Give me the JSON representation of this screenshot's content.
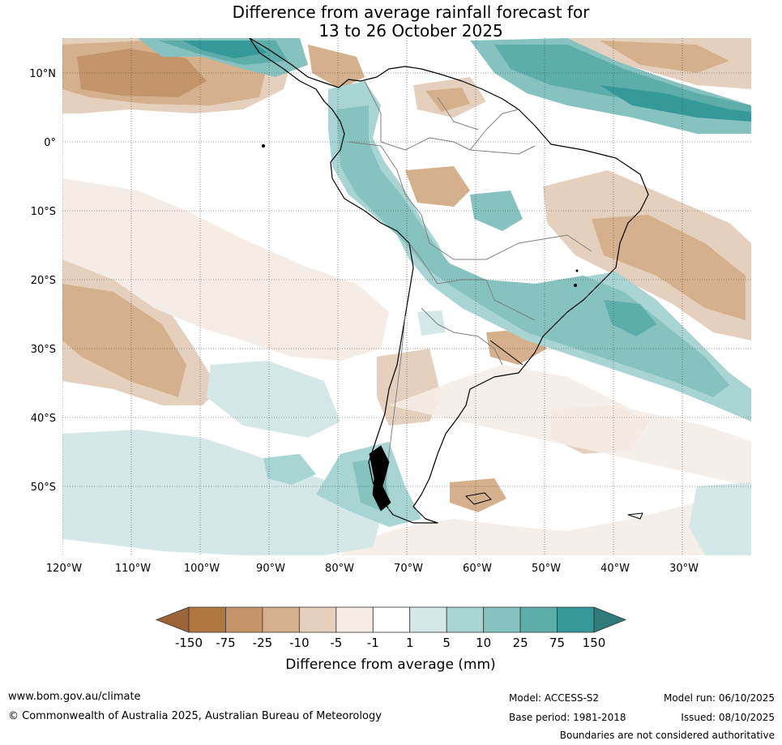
{
  "title": {
    "line1": "Difference from average rainfall forecast for",
    "line2": "13 to 26 October 2025"
  },
  "lat_labels": [
    "10°N",
    "0°",
    "10°S",
    "20°S",
    "30°S",
    "40°S",
    "50°S"
  ],
  "lon_labels": [
    "120°W",
    "110°W",
    "100°W",
    "90°W",
    "80°W",
    "70°W",
    "60°W",
    "50°W",
    "40°W",
    "30°W"
  ],
  "colorbar": {
    "title": "Difference from average (mm)",
    "tick_labels": [
      "-150",
      "-75",
      "-25",
      "-10",
      "-5",
      "-1",
      "1",
      "5",
      "10",
      "25",
      "75",
      "150"
    ],
    "colors": [
      "#b07840",
      "#c4956a",
      "#d4b08c",
      "#e5d0bd",
      "#f5ece6",
      "#ffffff",
      "#d4e9e7",
      "#a8d5d3",
      "#85c2c0",
      "#5dadab",
      "#35999a"
    ],
    "extend_low_color": "#9c6535",
    "extend_high_color": "#2e7b7a"
  },
  "footer": {
    "website": "www.bom.gov.au/climate",
    "copyright": "© Commonwealth of Australia 2025, Australian Bureau of Meteorology",
    "model": "Model: ACCESS-S2",
    "base_period": "Base period: 1981-2018",
    "model_run": "Model run: 06/10/2025",
    "issued": "Issued: 08/10/2025",
    "disclaimer": "Boundaries are not considered authoritative"
  }
}
